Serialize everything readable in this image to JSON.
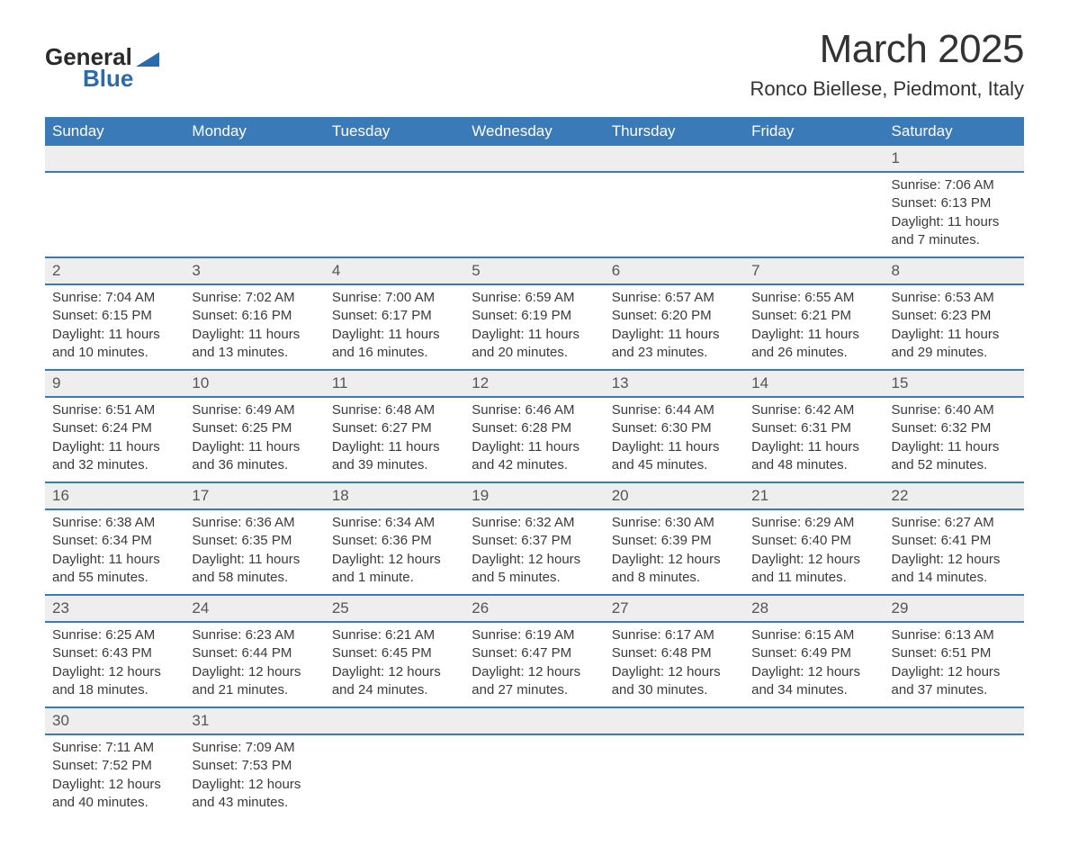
{
  "logo": {
    "line1": "General",
    "line2": "Blue"
  },
  "header": {
    "month_title": "March 2025",
    "location": "Ronco Biellese, Piedmont, Italy"
  },
  "colors": {
    "header_bg": "#3a7ab8",
    "header_text": "#ffffff",
    "row_divider": "#3a7ab8",
    "daynum_bg": "#eeeeee",
    "body_text": "#3a3a3a",
    "logo_accent": "#2a6bb0"
  },
  "weekdays": [
    "Sunday",
    "Monday",
    "Tuesday",
    "Wednesday",
    "Thursday",
    "Friday",
    "Saturday"
  ],
  "weeks": [
    [
      null,
      null,
      null,
      null,
      null,
      null,
      {
        "n": "1",
        "sunrise": "Sunrise: 7:06 AM",
        "sunset": "Sunset: 6:13 PM",
        "daylight": "Daylight: 11 hours and 7 minutes."
      }
    ],
    [
      {
        "n": "2",
        "sunrise": "Sunrise: 7:04 AM",
        "sunset": "Sunset: 6:15 PM",
        "daylight": "Daylight: 11 hours and 10 minutes."
      },
      {
        "n": "3",
        "sunrise": "Sunrise: 7:02 AM",
        "sunset": "Sunset: 6:16 PM",
        "daylight": "Daylight: 11 hours and 13 minutes."
      },
      {
        "n": "4",
        "sunrise": "Sunrise: 7:00 AM",
        "sunset": "Sunset: 6:17 PM",
        "daylight": "Daylight: 11 hours and 16 minutes."
      },
      {
        "n": "5",
        "sunrise": "Sunrise: 6:59 AM",
        "sunset": "Sunset: 6:19 PM",
        "daylight": "Daylight: 11 hours and 20 minutes."
      },
      {
        "n": "6",
        "sunrise": "Sunrise: 6:57 AM",
        "sunset": "Sunset: 6:20 PM",
        "daylight": "Daylight: 11 hours and 23 minutes."
      },
      {
        "n": "7",
        "sunrise": "Sunrise: 6:55 AM",
        "sunset": "Sunset: 6:21 PM",
        "daylight": "Daylight: 11 hours and 26 minutes."
      },
      {
        "n": "8",
        "sunrise": "Sunrise: 6:53 AM",
        "sunset": "Sunset: 6:23 PM",
        "daylight": "Daylight: 11 hours and 29 minutes."
      }
    ],
    [
      {
        "n": "9",
        "sunrise": "Sunrise: 6:51 AM",
        "sunset": "Sunset: 6:24 PM",
        "daylight": "Daylight: 11 hours and 32 minutes."
      },
      {
        "n": "10",
        "sunrise": "Sunrise: 6:49 AM",
        "sunset": "Sunset: 6:25 PM",
        "daylight": "Daylight: 11 hours and 36 minutes."
      },
      {
        "n": "11",
        "sunrise": "Sunrise: 6:48 AM",
        "sunset": "Sunset: 6:27 PM",
        "daylight": "Daylight: 11 hours and 39 minutes."
      },
      {
        "n": "12",
        "sunrise": "Sunrise: 6:46 AM",
        "sunset": "Sunset: 6:28 PM",
        "daylight": "Daylight: 11 hours and 42 minutes."
      },
      {
        "n": "13",
        "sunrise": "Sunrise: 6:44 AM",
        "sunset": "Sunset: 6:30 PM",
        "daylight": "Daylight: 11 hours and 45 minutes."
      },
      {
        "n": "14",
        "sunrise": "Sunrise: 6:42 AM",
        "sunset": "Sunset: 6:31 PM",
        "daylight": "Daylight: 11 hours and 48 minutes."
      },
      {
        "n": "15",
        "sunrise": "Sunrise: 6:40 AM",
        "sunset": "Sunset: 6:32 PM",
        "daylight": "Daylight: 11 hours and 52 minutes."
      }
    ],
    [
      {
        "n": "16",
        "sunrise": "Sunrise: 6:38 AM",
        "sunset": "Sunset: 6:34 PM",
        "daylight": "Daylight: 11 hours and 55 minutes."
      },
      {
        "n": "17",
        "sunrise": "Sunrise: 6:36 AM",
        "sunset": "Sunset: 6:35 PM",
        "daylight": "Daylight: 11 hours and 58 minutes."
      },
      {
        "n": "18",
        "sunrise": "Sunrise: 6:34 AM",
        "sunset": "Sunset: 6:36 PM",
        "daylight": "Daylight: 12 hours and 1 minute."
      },
      {
        "n": "19",
        "sunrise": "Sunrise: 6:32 AM",
        "sunset": "Sunset: 6:37 PM",
        "daylight": "Daylight: 12 hours and 5 minutes."
      },
      {
        "n": "20",
        "sunrise": "Sunrise: 6:30 AM",
        "sunset": "Sunset: 6:39 PM",
        "daylight": "Daylight: 12 hours and 8 minutes."
      },
      {
        "n": "21",
        "sunrise": "Sunrise: 6:29 AM",
        "sunset": "Sunset: 6:40 PM",
        "daylight": "Daylight: 12 hours and 11 minutes."
      },
      {
        "n": "22",
        "sunrise": "Sunrise: 6:27 AM",
        "sunset": "Sunset: 6:41 PM",
        "daylight": "Daylight: 12 hours and 14 minutes."
      }
    ],
    [
      {
        "n": "23",
        "sunrise": "Sunrise: 6:25 AM",
        "sunset": "Sunset: 6:43 PM",
        "daylight": "Daylight: 12 hours and 18 minutes."
      },
      {
        "n": "24",
        "sunrise": "Sunrise: 6:23 AM",
        "sunset": "Sunset: 6:44 PM",
        "daylight": "Daylight: 12 hours and 21 minutes."
      },
      {
        "n": "25",
        "sunrise": "Sunrise: 6:21 AM",
        "sunset": "Sunset: 6:45 PM",
        "daylight": "Daylight: 12 hours and 24 minutes."
      },
      {
        "n": "26",
        "sunrise": "Sunrise: 6:19 AM",
        "sunset": "Sunset: 6:47 PM",
        "daylight": "Daylight: 12 hours and 27 minutes."
      },
      {
        "n": "27",
        "sunrise": "Sunrise: 6:17 AM",
        "sunset": "Sunset: 6:48 PM",
        "daylight": "Daylight: 12 hours and 30 minutes."
      },
      {
        "n": "28",
        "sunrise": "Sunrise: 6:15 AM",
        "sunset": "Sunset: 6:49 PM",
        "daylight": "Daylight: 12 hours and 34 minutes."
      },
      {
        "n": "29",
        "sunrise": "Sunrise: 6:13 AM",
        "sunset": "Sunset: 6:51 PM",
        "daylight": "Daylight: 12 hours and 37 minutes."
      }
    ],
    [
      {
        "n": "30",
        "sunrise": "Sunrise: 7:11 AM",
        "sunset": "Sunset: 7:52 PM",
        "daylight": "Daylight: 12 hours and 40 minutes."
      },
      {
        "n": "31",
        "sunrise": "Sunrise: 7:09 AM",
        "sunset": "Sunset: 7:53 PM",
        "daylight": "Daylight: 12 hours and 43 minutes."
      },
      null,
      null,
      null,
      null,
      null
    ]
  ]
}
